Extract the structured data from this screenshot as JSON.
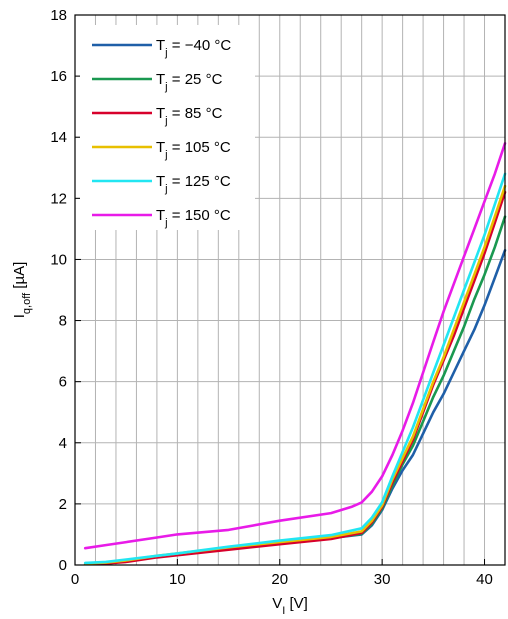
{
  "chart_data": {
    "type": "line",
    "title": "",
    "xlabel": {
      "main": "V",
      "sub": "I",
      "unit": " [V]"
    },
    "ylabel": {
      "main": "I",
      "sub": "q,off",
      "unit": " [µA]"
    },
    "xlim": [
      0,
      42
    ],
    "ylim": [
      0,
      18
    ],
    "xticks": [
      0,
      10,
      20,
      30,
      40
    ],
    "yticks": [
      0,
      2,
      4,
      6,
      8,
      10,
      12,
      14,
      16,
      18
    ],
    "grid": true,
    "legend_position": "top-left",
    "series": [
      {
        "name": "T_j = −40 °C",
        "legend": {
          "base": "T",
          "sub": "j",
          "rest": " = −40 °C"
        },
        "color": "#1f5fa8",
        "points": [
          [
            1,
            0.03
          ],
          [
            3,
            0.05
          ],
          [
            5,
            0.12
          ],
          [
            8,
            0.28
          ],
          [
            10,
            0.35
          ],
          [
            15,
            0.55
          ],
          [
            20,
            0.72
          ],
          [
            25,
            0.88
          ],
          [
            28,
            1.0
          ],
          [
            29,
            1.3
          ],
          [
            30,
            1.8
          ],
          [
            31,
            2.5
          ],
          [
            32,
            3.1
          ],
          [
            33,
            3.6
          ],
          [
            34,
            4.3
          ],
          [
            35,
            5.0
          ],
          [
            36,
            5.6
          ],
          [
            37,
            6.3
          ],
          [
            38,
            7.0
          ],
          [
            39,
            7.7
          ],
          [
            40,
            8.5
          ],
          [
            41,
            9.4
          ],
          [
            42,
            10.3
          ]
        ]
      },
      {
        "name": "T_j = 25 °C",
        "legend": {
          "base": "T",
          "sub": "j",
          "rest": " = 25 °C"
        },
        "color": "#1a9850",
        "points": [
          [
            1,
            0.03
          ],
          [
            3,
            0.05
          ],
          [
            5,
            0.12
          ],
          [
            8,
            0.28
          ],
          [
            10,
            0.35
          ],
          [
            15,
            0.55
          ],
          [
            20,
            0.72
          ],
          [
            25,
            0.88
          ],
          [
            28,
            1.02
          ],
          [
            29,
            1.35
          ],
          [
            30,
            1.85
          ],
          [
            31,
            2.6
          ],
          [
            32,
            3.3
          ],
          [
            33,
            3.9
          ],
          [
            34,
            4.7
          ],
          [
            35,
            5.5
          ],
          [
            36,
            6.2
          ],
          [
            37,
            7.0
          ],
          [
            38,
            7.8
          ],
          [
            39,
            8.7
          ],
          [
            40,
            9.5
          ],
          [
            41,
            10.4
          ],
          [
            42,
            11.4
          ]
        ]
      },
      {
        "name": "T_j = 85 °C",
        "legend": {
          "base": "T",
          "sub": "j",
          "rest": " = 85 °C"
        },
        "color": "#d7002b",
        "points": [
          [
            1,
            0.03
          ],
          [
            3,
            0.05
          ],
          [
            5,
            0.1
          ],
          [
            8,
            0.25
          ],
          [
            10,
            0.32
          ],
          [
            15,
            0.5
          ],
          [
            20,
            0.68
          ],
          [
            25,
            0.85
          ],
          [
            28,
            1.05
          ],
          [
            29,
            1.4
          ],
          [
            30,
            1.9
          ],
          [
            31,
            2.7
          ],
          [
            32,
            3.4
          ],
          [
            33,
            4.1
          ],
          [
            34,
            5.0
          ],
          [
            35,
            5.9
          ],
          [
            36,
            6.7
          ],
          [
            37,
            7.5
          ],
          [
            38,
            8.4
          ],
          [
            39,
            9.3
          ],
          [
            40,
            10.2
          ],
          [
            41,
            11.2
          ],
          [
            42,
            12.2
          ]
        ]
      },
      {
        "name": "T_j = 105 °C",
        "legend": {
          "base": "T",
          "sub": "j",
          "rest": " = 105 °C"
        },
        "color": "#e8c000",
        "points": [
          [
            1,
            0.05
          ],
          [
            3,
            0.08
          ],
          [
            5,
            0.15
          ],
          [
            8,
            0.3
          ],
          [
            10,
            0.38
          ],
          [
            15,
            0.58
          ],
          [
            20,
            0.75
          ],
          [
            25,
            0.92
          ],
          [
            28,
            1.1
          ],
          [
            29,
            1.45
          ],
          [
            30,
            1.95
          ],
          [
            31,
            2.8
          ],
          [
            32,
            3.5
          ],
          [
            33,
            4.2
          ],
          [
            34,
            5.1
          ],
          [
            35,
            6.0
          ],
          [
            36,
            6.8
          ],
          [
            37,
            7.7
          ],
          [
            38,
            8.6
          ],
          [
            39,
            9.5
          ],
          [
            40,
            10.4
          ],
          [
            41,
            11.4
          ],
          [
            42,
            12.4
          ]
        ]
      },
      {
        "name": "T_j = 125 °C",
        "legend": {
          "base": "T",
          "sub": "j",
          "rest": " = 125 °C"
        },
        "color": "#22e6f2",
        "points": [
          [
            1,
            0.07
          ],
          [
            3,
            0.1
          ],
          [
            5,
            0.18
          ],
          [
            8,
            0.3
          ],
          [
            10,
            0.38
          ],
          [
            15,
            0.6
          ],
          [
            20,
            0.8
          ],
          [
            25,
            0.98
          ],
          [
            28,
            1.2
          ],
          [
            29,
            1.55
          ],
          [
            30,
            2.05
          ],
          [
            31,
            2.9
          ],
          [
            32,
            3.7
          ],
          [
            33,
            4.5
          ],
          [
            34,
            5.4
          ],
          [
            35,
            6.3
          ],
          [
            36,
            7.2
          ],
          [
            37,
            8.1
          ],
          [
            38,
            9.0
          ],
          [
            39,
            9.9
          ],
          [
            40,
            10.8
          ],
          [
            41,
            11.8
          ],
          [
            42,
            12.8
          ]
        ]
      },
      {
        "name": "T_j = 150 °C",
        "legend": {
          "base": "T",
          "sub": "j",
          "rest": " = 150 °C"
        },
        "color": "#e81be8",
        "points": [
          [
            1,
            0.55
          ],
          [
            3,
            0.65
          ],
          [
            5,
            0.75
          ],
          [
            8,
            0.9
          ],
          [
            10,
            1.0
          ],
          [
            15,
            1.15
          ],
          [
            20,
            1.45
          ],
          [
            25,
            1.7
          ],
          [
            27,
            1.9
          ],
          [
            28,
            2.05
          ],
          [
            29,
            2.4
          ],
          [
            30,
            2.9
          ],
          [
            31,
            3.6
          ],
          [
            32,
            4.4
          ],
          [
            33,
            5.3
          ],
          [
            34,
            6.3
          ],
          [
            35,
            7.3
          ],
          [
            36,
            8.3
          ],
          [
            37,
            9.2
          ],
          [
            38,
            10.1
          ],
          [
            39,
            11.0
          ],
          [
            40,
            11.9
          ],
          [
            41,
            12.8
          ],
          [
            42,
            13.8
          ]
        ]
      }
    ]
  }
}
